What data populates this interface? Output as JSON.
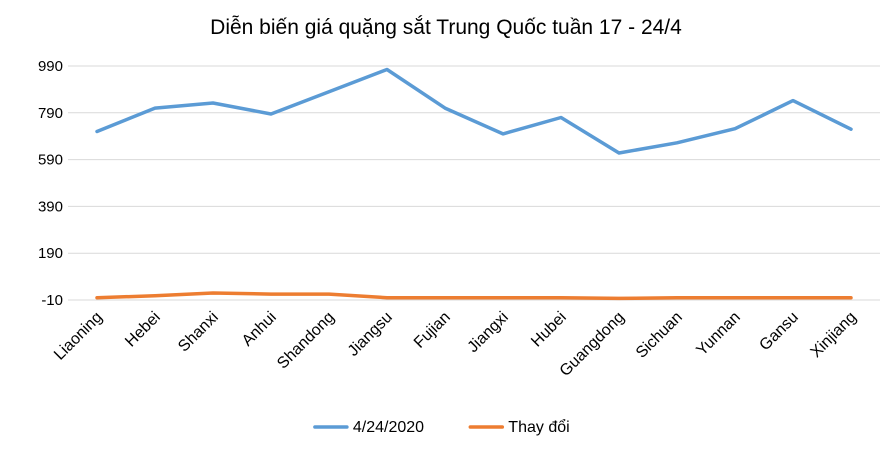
{
  "chart_data": {
    "type": "line",
    "title": "Diễn biến giá quặng sắt Trung Quốc tuần 17 - 24/4",
    "xlabel": "",
    "ylabel": "",
    "categories": [
      "Liaoning",
      "Hebei",
      "Shanxi",
      "Anhui",
      "Shandong",
      "Jiangsu",
      "Fujian",
      "Jiangxi",
      "Hubei",
      "Guangdong",
      "Sichuan",
      "Yunnan",
      "Gansu",
      "Xinjiang"
    ],
    "y_ticks": [
      "990",
      "790",
      "590",
      "390",
      "190",
      "-10"
    ],
    "ylim": [
      -10,
      990
    ],
    "grid": true,
    "legend_position": "bottom",
    "series": [
      {
        "name": "4/24/2020",
        "color": "#5B9BD5",
        "values": [
          710,
          810,
          832,
          785,
          880,
          975,
          810,
          700,
          770,
          618,
          662,
          722,
          842,
          720
        ]
      },
      {
        "name": "Thay đổi",
        "color": "#ED7D31",
        "values": [
          0,
          8,
          20,
          15,
          15,
          0,
          0,
          0,
          0,
          -3,
          0,
          0,
          0,
          0
        ]
      }
    ]
  }
}
